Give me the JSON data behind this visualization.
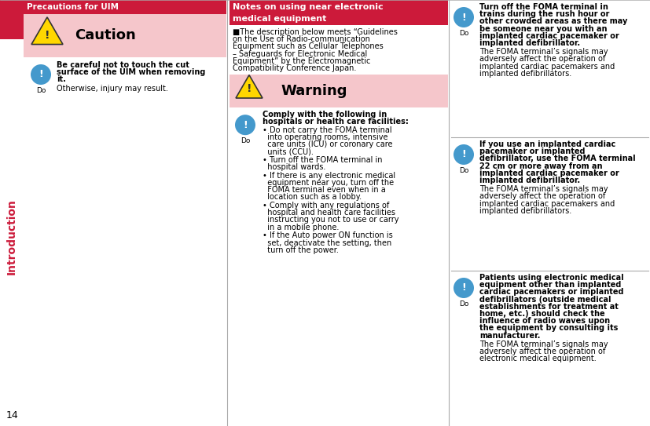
{
  "page_number": "14",
  "sidebar_text": "Introduction",
  "sidebar_bg": "#cc1a3a",
  "sidebar_text_color": "#ffffff",
  "col1_header": "Precautions for UIM",
  "col1_header_bg": "#cc1a3a",
  "col1_header_color": "#ffffff",
  "col2_header_line1": "Notes on using near electronic",
  "col2_header_line2": "medical equipment",
  "col2_header_bg": "#cc1a3a",
  "col2_header_color": "#ffffff",
  "caution_bg": "#f5c6cb",
  "caution_title": "Caution",
  "warning_bg": "#f5c6cb",
  "warning_title": "Warning",
  "col1_bold": "Be careful not to touch the cut\nsurface of the UIM when removing\nit.",
  "col1_normal": "Otherwise, injury may result.",
  "col2_intro_lines": [
    "■The description below meets “Guidelines",
    "on the Use of Radio-communication",
    "Equipment such as Cellular Telephones",
    "– Safeguards for Electronic Medical",
    "Equipment” by the Electromagnetic",
    "Compatibility Conference Japan."
  ],
  "col2_warn_bold_lines": [
    "Comply with the following in",
    "hospitals or health care facilities:"
  ],
  "col2_bullets_lines": [
    [
      "• Do not carry the FOMA terminal",
      "  into operating rooms, intensive",
      "  care units (ICU) or coronary care",
      "  units (CCU)."
    ],
    [
      "• Turn off the FOMA terminal in",
      "  hospital wards."
    ],
    [
      "• If there is any electronic medical",
      "  equipment near you, turn off the",
      "  FOMA terminal even when in a",
      "  location such as a lobby."
    ],
    [
      "• Comply with any regulations of",
      "  hospital and health care facilities",
      "  instructing you not to use or carry",
      "  in a mobile phone."
    ],
    [
      "• If the Auto power ON function is",
      "  set, deactivate the setting, then",
      "  turn off the power."
    ]
  ],
  "col3_blocks": [
    {
      "bold_lines": [
        "Turn off the FOMA terminal in",
        "trains during the rush hour or",
        "other crowded areas as there may",
        "be someone near you with an",
        "implanted cardiac pacemaker or",
        "implanted defibrillator."
      ],
      "normal_lines": [
        "The FOMA terminal’s signals may",
        "adversely affect the operation of",
        "implanted cardiac pacemakers and",
        "implanted defibrillators."
      ]
    },
    {
      "bold_lines": [
        "If you use an implanted cardiac",
        "pacemaker or implanted",
        "defibrillator, use the FOMA terminal",
        "22 cm or more away from an",
        "implanted cardiac pacemaker or",
        "implanted defibrillator."
      ],
      "normal_lines": [
        "The FOMA terminal’s signals may",
        "adversely affect the operation of",
        "implanted cardiac pacemakers and",
        "implanted defibrillators."
      ]
    },
    {
      "bold_lines": [
        "Patients using electronic medical",
        "equipment other than implanted",
        "cardiac pacemakers or implanted",
        "defibrillators (outside medical",
        "establishments for treatment at",
        "home, etc.) should check the",
        "influence of radio waves upon",
        "the equipment by consulting its",
        "manufacturer."
      ],
      "normal_lines": [
        "The FOMA terminal’s signals may",
        "adversely affect the operation of",
        "electronic medical equipment."
      ]
    }
  ],
  "divider_color": "#aaaaaa",
  "text_color": "#000000",
  "bg_color": "#ffffff",
  "triangle_yellow": "#FFD700",
  "circle_blue": "#4499CC"
}
